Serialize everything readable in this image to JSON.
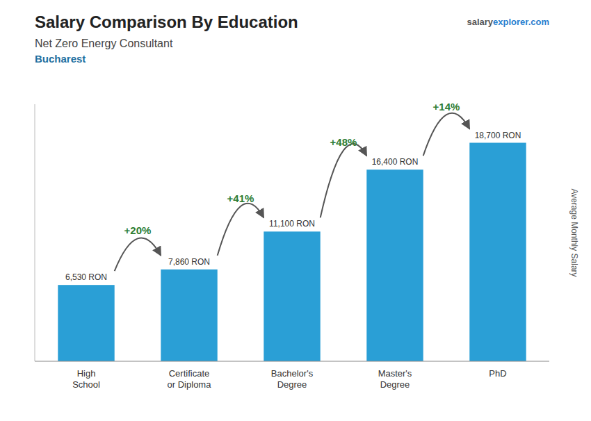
{
  "chart_data": {
    "type": "bar",
    "title": "Salary Comparison By Education",
    "subtitle": [
      "Net Zero Energy Consultant",
      "Bucharest"
    ],
    "watermark": [
      "salary",
      "explorer.com"
    ],
    "ylabel": "Average Monthly Salary",
    "categories": [
      "High\nSchool",
      "Certificate\nor Diploma",
      "Bachelor's\nDegree",
      "Master's\nDegree",
      "PhD"
    ],
    "values": [
      6530,
      7860,
      11100,
      16400,
      18700
    ],
    "value_labels": [
      "6,530 RON",
      "7,860 RON",
      "11,100 RON",
      "16,400 RON",
      "18,700 RON"
    ],
    "data_labels": true,
    "annotations": [
      "+20%",
      "+41%",
      "+48%",
      "+14%"
    ],
    "color": "#2a9fd6",
    "ylim": [
      0,
      22000
    ],
    "tick_labels": "x",
    "grid": false
  }
}
